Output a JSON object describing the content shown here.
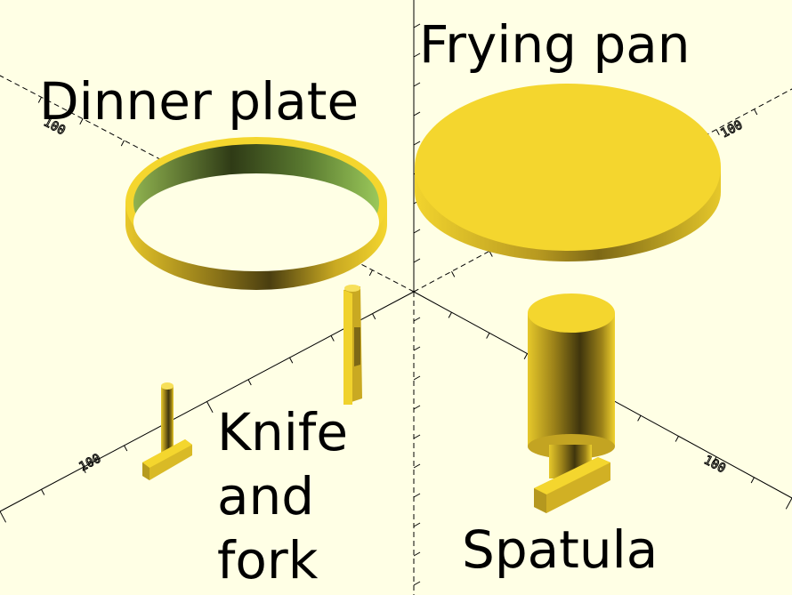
{
  "labels": {
    "dinner_plate": "Dinner plate",
    "frying_pan": "Frying pan",
    "knife_fork": [
      "Knife",
      "and",
      "fork"
    ],
    "spatula": "Spatula"
  },
  "axis_ticks": {
    "x_positive": "100",
    "x_negative": "100",
    "y_positive": "100",
    "y_negative": "100"
  },
  "colors": {
    "background": "#ffffe5",
    "object_fill": "#f4d62e",
    "object_dark": "#4a3e10",
    "object_inner": "#7fa04a",
    "axis": "#000000"
  }
}
